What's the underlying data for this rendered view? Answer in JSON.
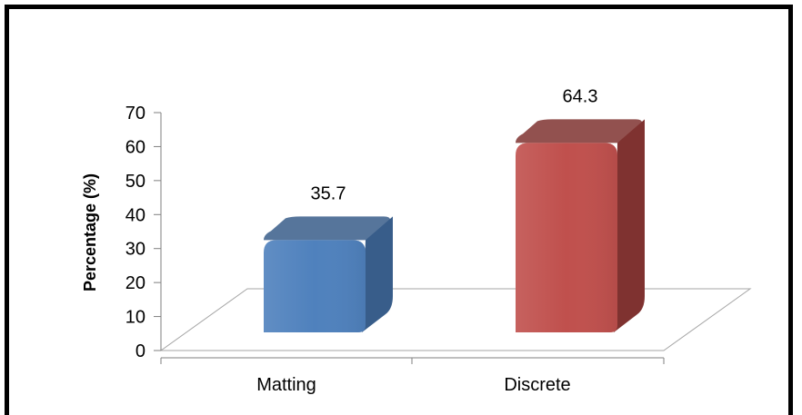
{
  "chart_data": {
    "type": "bar",
    "categories": [
      "Matting",
      "Discrete"
    ],
    "values": [
      35.7,
      64.3
    ],
    "value_labels": [
      "35.7",
      "64.3"
    ],
    "ylabel": "Percentage (%)",
    "ylim": [
      0,
      70
    ],
    "yticks": [
      "0",
      "10",
      "20",
      "30",
      "40",
      "50",
      "60",
      "70"
    ],
    "grid": false,
    "legend": "none",
    "style": "3d",
    "bar_colors": [
      "#4F81BD",
      "#C0504D"
    ],
    "bar_side_colors": [
      "#385D8A",
      "#7F3230"
    ]
  }
}
